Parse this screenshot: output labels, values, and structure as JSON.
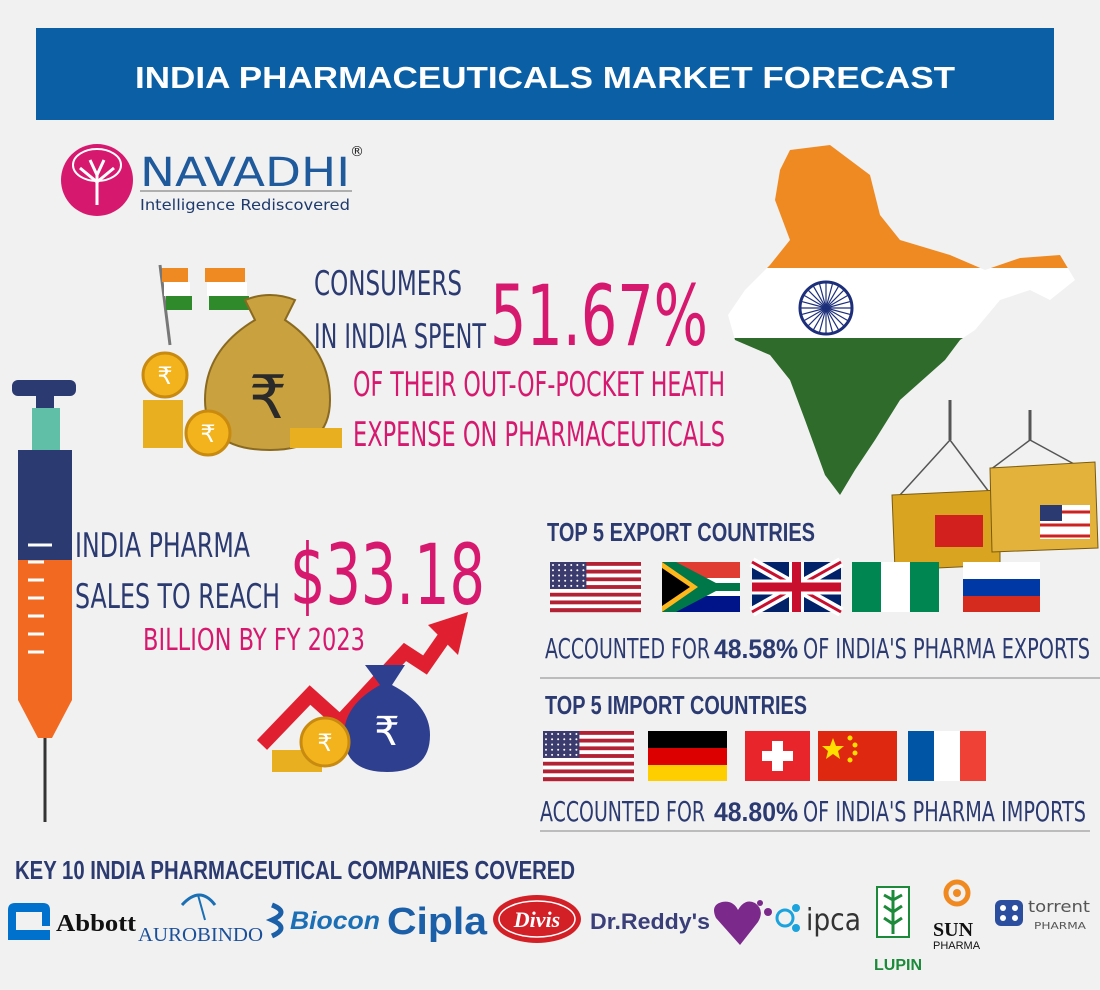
{
  "header": {
    "title": "INDIA PHARMACEUTICALS MARKET FORECAST"
  },
  "logo": {
    "name": "NAVADHI",
    "mark": "®",
    "tagline": "Intelligence Rediscovered"
  },
  "icon": {
    "currency": "₹"
  },
  "spending": {
    "lines": [
      "CONSUMERS",
      "IN INDIA SPENT"
    ],
    "share": "51.67%",
    "detail": [
      "OF THEIR OUT-OF-POCKET HEATH",
      "EXPENSE ON PHARMACEUTICALS"
    ]
  },
  "sales": {
    "lines": [
      "INDIA PHARMA",
      "SALES TO REACH"
    ],
    "amount": "$33.18",
    "detail": "BILLION BY FY 2023"
  },
  "exports": {
    "title": "TOP 5 EXPORT COUNTRIES",
    "lead": "ACCOUNTED FOR",
    "share": "48.58%",
    "tail": "OF INDIA'S PHARMA EXPORTS"
  },
  "imports": {
    "title": "TOP 5 IMPORT COUNTRIES",
    "lead": "ACCOUNTED FOR",
    "share": "48.80%",
    "tail": "OF INDIA'S PHARMA IMPORTS"
  },
  "companies": {
    "title": "KEY 10 INDIA PHARMACEUTICAL COMPANIES COVERED",
    "logos": [
      {
        "name": "Abbott"
      },
      {
        "name": "AUROBINDO"
      },
      {
        "name": "Biocon"
      },
      {
        "name": "Cipla"
      },
      {
        "name": "Divis"
      },
      {
        "name": "Dr.Reddy's"
      },
      {
        "name": "ipca"
      },
      {
        "name": "LUPIN"
      },
      {
        "name": "SUN",
        "sub": "PHARMA"
      },
      {
        "name": "torrent",
        "sub": "PHARMA"
      }
    ]
  }
}
